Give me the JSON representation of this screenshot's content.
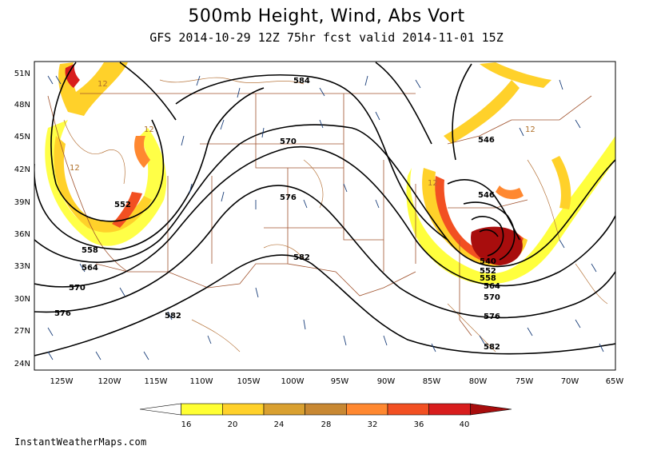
{
  "title": "500mb Height, Wind, Abs Vort",
  "subtitle": "GFS 2014-10-29 12Z 75hr fcst valid 2014-11-01 15Z",
  "lat_labels": [
    "51N",
    "48N",
    "45N",
    "42N",
    "39N",
    "36N",
    "33N",
    "30N",
    "27N",
    "24N"
  ],
  "lon_labels": [
    "125W",
    "120W",
    "115W",
    "110W",
    "105W",
    "100W",
    "95W",
    "90W",
    "85W",
    "80W",
    "75W",
    "70W",
    "65W"
  ],
  "height_contours": [
    {
      "label": "552",
      "name": "contour-552-west"
    },
    {
      "label": "558",
      "name": "contour-558"
    },
    {
      "label": "564",
      "name": "contour-564"
    },
    {
      "label": "570",
      "name": "contour-570"
    },
    {
      "label": "576",
      "name": "contour-576"
    },
    {
      "label": "582",
      "name": "contour-582"
    }
  ],
  "contour_labels": [
    "552",
    "558",
    "564",
    "570",
    "576",
    "582",
    "584",
    "570",
    "576",
    "582",
    "546",
    "546",
    "540",
    "552",
    "558",
    "564",
    "570",
    "576",
    "582"
  ],
  "vort_labels": [
    "12",
    "12",
    "12",
    "12",
    "12"
  ],
  "colorbar": {
    "ticks": [
      "16",
      "20",
      "24",
      "28",
      "32",
      "36",
      "40"
    ],
    "colors": [
      "#fefefe",
      "#ffff33",
      "#ffd12a",
      "#d9a030",
      "#c88833",
      "#ff8830",
      "#f25022",
      "#d81d1d",
      "#a80d0d"
    ]
  },
  "credit": "InstantWeatherMaps.com"
}
